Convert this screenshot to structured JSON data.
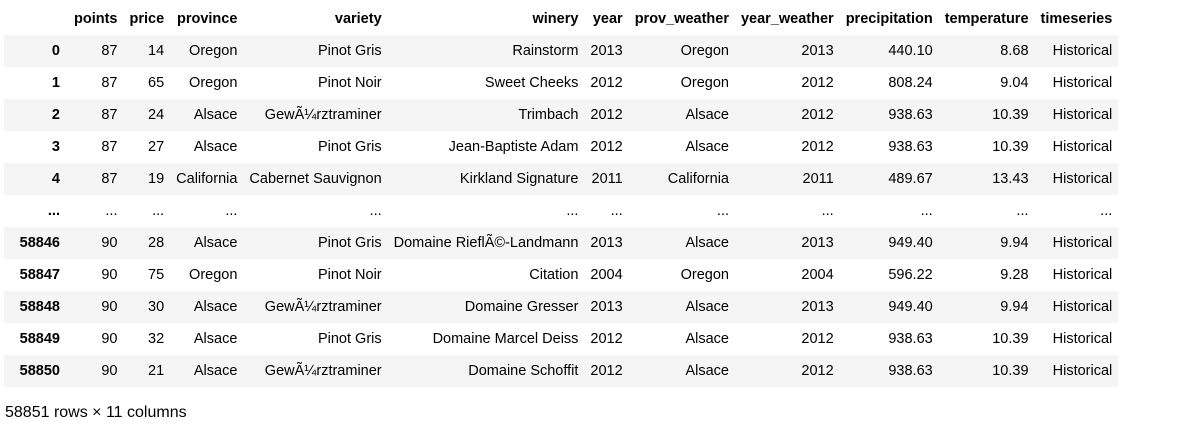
{
  "columns": [
    "points",
    "price",
    "province",
    "variety",
    "winery",
    "year",
    "prov_weather",
    "year_weather",
    "precipitation",
    "temperature",
    "timeseries"
  ],
  "rows": [
    {
      "index": "0",
      "cells": [
        "87",
        "14",
        "Oregon",
        "Pinot Gris",
        "Rainstorm",
        "2013",
        "Oregon",
        "2013",
        "440.10",
        "8.68",
        "Historical"
      ]
    },
    {
      "index": "1",
      "cells": [
        "87",
        "65",
        "Oregon",
        "Pinot Noir",
        "Sweet Cheeks",
        "2012",
        "Oregon",
        "2012",
        "808.24",
        "9.04",
        "Historical"
      ]
    },
    {
      "index": "2",
      "cells": [
        "87",
        "24",
        "Alsace",
        "GewÃ¼rztraminer",
        "Trimbach",
        "2012",
        "Alsace",
        "2012",
        "938.63",
        "10.39",
        "Historical"
      ]
    },
    {
      "index": "3",
      "cells": [
        "87",
        "27",
        "Alsace",
        "Pinot Gris",
        "Jean-Baptiste Adam",
        "2012",
        "Alsace",
        "2012",
        "938.63",
        "10.39",
        "Historical"
      ]
    },
    {
      "index": "4",
      "cells": [
        "87",
        "19",
        "California",
        "Cabernet Sauvignon",
        "Kirkland Signature",
        "2011",
        "California",
        "2011",
        "489.67",
        "13.43",
        "Historical"
      ]
    },
    {
      "index": "...",
      "cells": [
        "...",
        "...",
        "...",
        "...",
        "...",
        "...",
        "...",
        "...",
        "...",
        "...",
        "..."
      ]
    },
    {
      "index": "58846",
      "cells": [
        "90",
        "28",
        "Alsace",
        "Pinot Gris",
        "Domaine RieflÃ©-Landmann",
        "2013",
        "Alsace",
        "2013",
        "949.40",
        "9.94",
        "Historical"
      ]
    },
    {
      "index": "58847",
      "cells": [
        "90",
        "75",
        "Oregon",
        "Pinot Noir",
        "Citation",
        "2004",
        "Oregon",
        "2004",
        "596.22",
        "9.28",
        "Historical"
      ]
    },
    {
      "index": "58848",
      "cells": [
        "90",
        "30",
        "Alsace",
        "GewÃ¼rztraminer",
        "Domaine Gresser",
        "2013",
        "Alsace",
        "2013",
        "949.40",
        "9.94",
        "Historical"
      ]
    },
    {
      "index": "58849",
      "cells": [
        "90",
        "32",
        "Alsace",
        "Pinot Gris",
        "Domaine Marcel Deiss",
        "2012",
        "Alsace",
        "2012",
        "938.63",
        "10.39",
        "Historical"
      ]
    },
    {
      "index": "58850",
      "cells": [
        "90",
        "21",
        "Alsace",
        "GewÃ¼rztraminer",
        "Domaine Schoffit",
        "2012",
        "Alsace",
        "2012",
        "938.63",
        "10.39",
        "Historical"
      ]
    }
  ],
  "footer": "58851 rows × 11 columns"
}
